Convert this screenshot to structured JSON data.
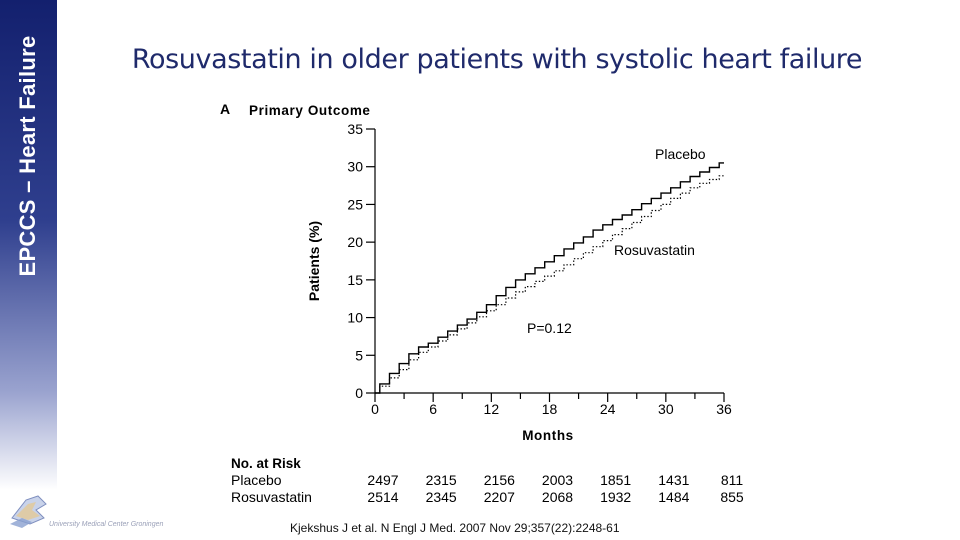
{
  "sidebar": {
    "label": "EPCCS – Heart Failure"
  },
  "slide_title": "Rosuvastatin in older patients with systolic heart failure",
  "logo": {
    "icon": "umcg-logo-icon",
    "text": "University Medical Center Groningen"
  },
  "citation": "Kjekshus J et al. N Engl J Med. 2007 Nov 29;357(22):2248-61",
  "chart_data": {
    "type": "line",
    "panel_letter": "A",
    "title": "Primary Outcome",
    "xlabel": "Months",
    "ylabel": "Patients (%)",
    "xlim": [
      0,
      36
    ],
    "ylim": [
      0,
      35
    ],
    "x_ticks": [
      0,
      6,
      12,
      18,
      24,
      30,
      36
    ],
    "y_ticks": [
      0,
      5,
      10,
      15,
      20,
      25,
      30,
      35
    ],
    "grid": false,
    "series": [
      {
        "name": "Placebo",
        "style": "solid",
        "x": [
          0,
          1,
          2,
          3,
          4,
          5,
          6,
          7,
          8,
          9,
          10,
          11,
          12,
          13,
          14,
          15,
          16,
          17,
          18,
          19,
          20,
          21,
          22,
          23,
          24,
          25,
          26,
          27,
          28,
          29,
          30,
          31,
          32,
          33,
          34,
          35,
          36
        ],
        "values": [
          0,
          1.2,
          2.6,
          3.9,
          5.2,
          6.1,
          6.6,
          7.4,
          8.2,
          9.0,
          9.8,
          10.7,
          11.7,
          12.9,
          14.0,
          15.0,
          15.8,
          16.6,
          17.4,
          18.2,
          19.1,
          19.9,
          20.7,
          21.6,
          22.3,
          23.0,
          23.6,
          24.3,
          25.1,
          25.8,
          26.5,
          27.2,
          28.0,
          28.7,
          29.3,
          29.9,
          30.5
        ]
      },
      {
        "name": "Rosuvastatin",
        "style": "dotted",
        "x": [
          0,
          1,
          2,
          3,
          4,
          5,
          6,
          7,
          8,
          9,
          10,
          11,
          12,
          13,
          14,
          15,
          16,
          17,
          18,
          19,
          20,
          21,
          22,
          23,
          24,
          25,
          26,
          27,
          28,
          29,
          30,
          31,
          32,
          33,
          34,
          35,
          36
        ],
        "values": [
          0,
          0.9,
          2.0,
          3.1,
          4.4,
          5.4,
          6.1,
          6.9,
          7.7,
          8.5,
          9.3,
          10.1,
          10.9,
          11.7,
          12.6,
          13.4,
          14.1,
          14.8,
          15.5,
          16.2,
          17.0,
          17.8,
          18.6,
          19.4,
          20.2,
          21.0,
          21.8,
          22.6,
          23.4,
          24.2,
          25.0,
          25.8,
          26.5,
          27.2,
          27.8,
          28.3,
          28.8
        ]
      }
    ],
    "annotations": [
      "P=0.12"
    ],
    "risk_table": {
      "title": "No. at Risk",
      "rows": [
        {
          "label": "Placebo",
          "values": [
            "2497",
            "2315",
            "2156",
            "2003",
            "1851",
            "1431",
            "811"
          ]
        },
        {
          "label": "Rosuvastatin",
          "values": [
            "2514",
            "2345",
            "2207",
            "2068",
            "1932",
            "1484",
            "855"
          ]
        }
      ]
    }
  }
}
